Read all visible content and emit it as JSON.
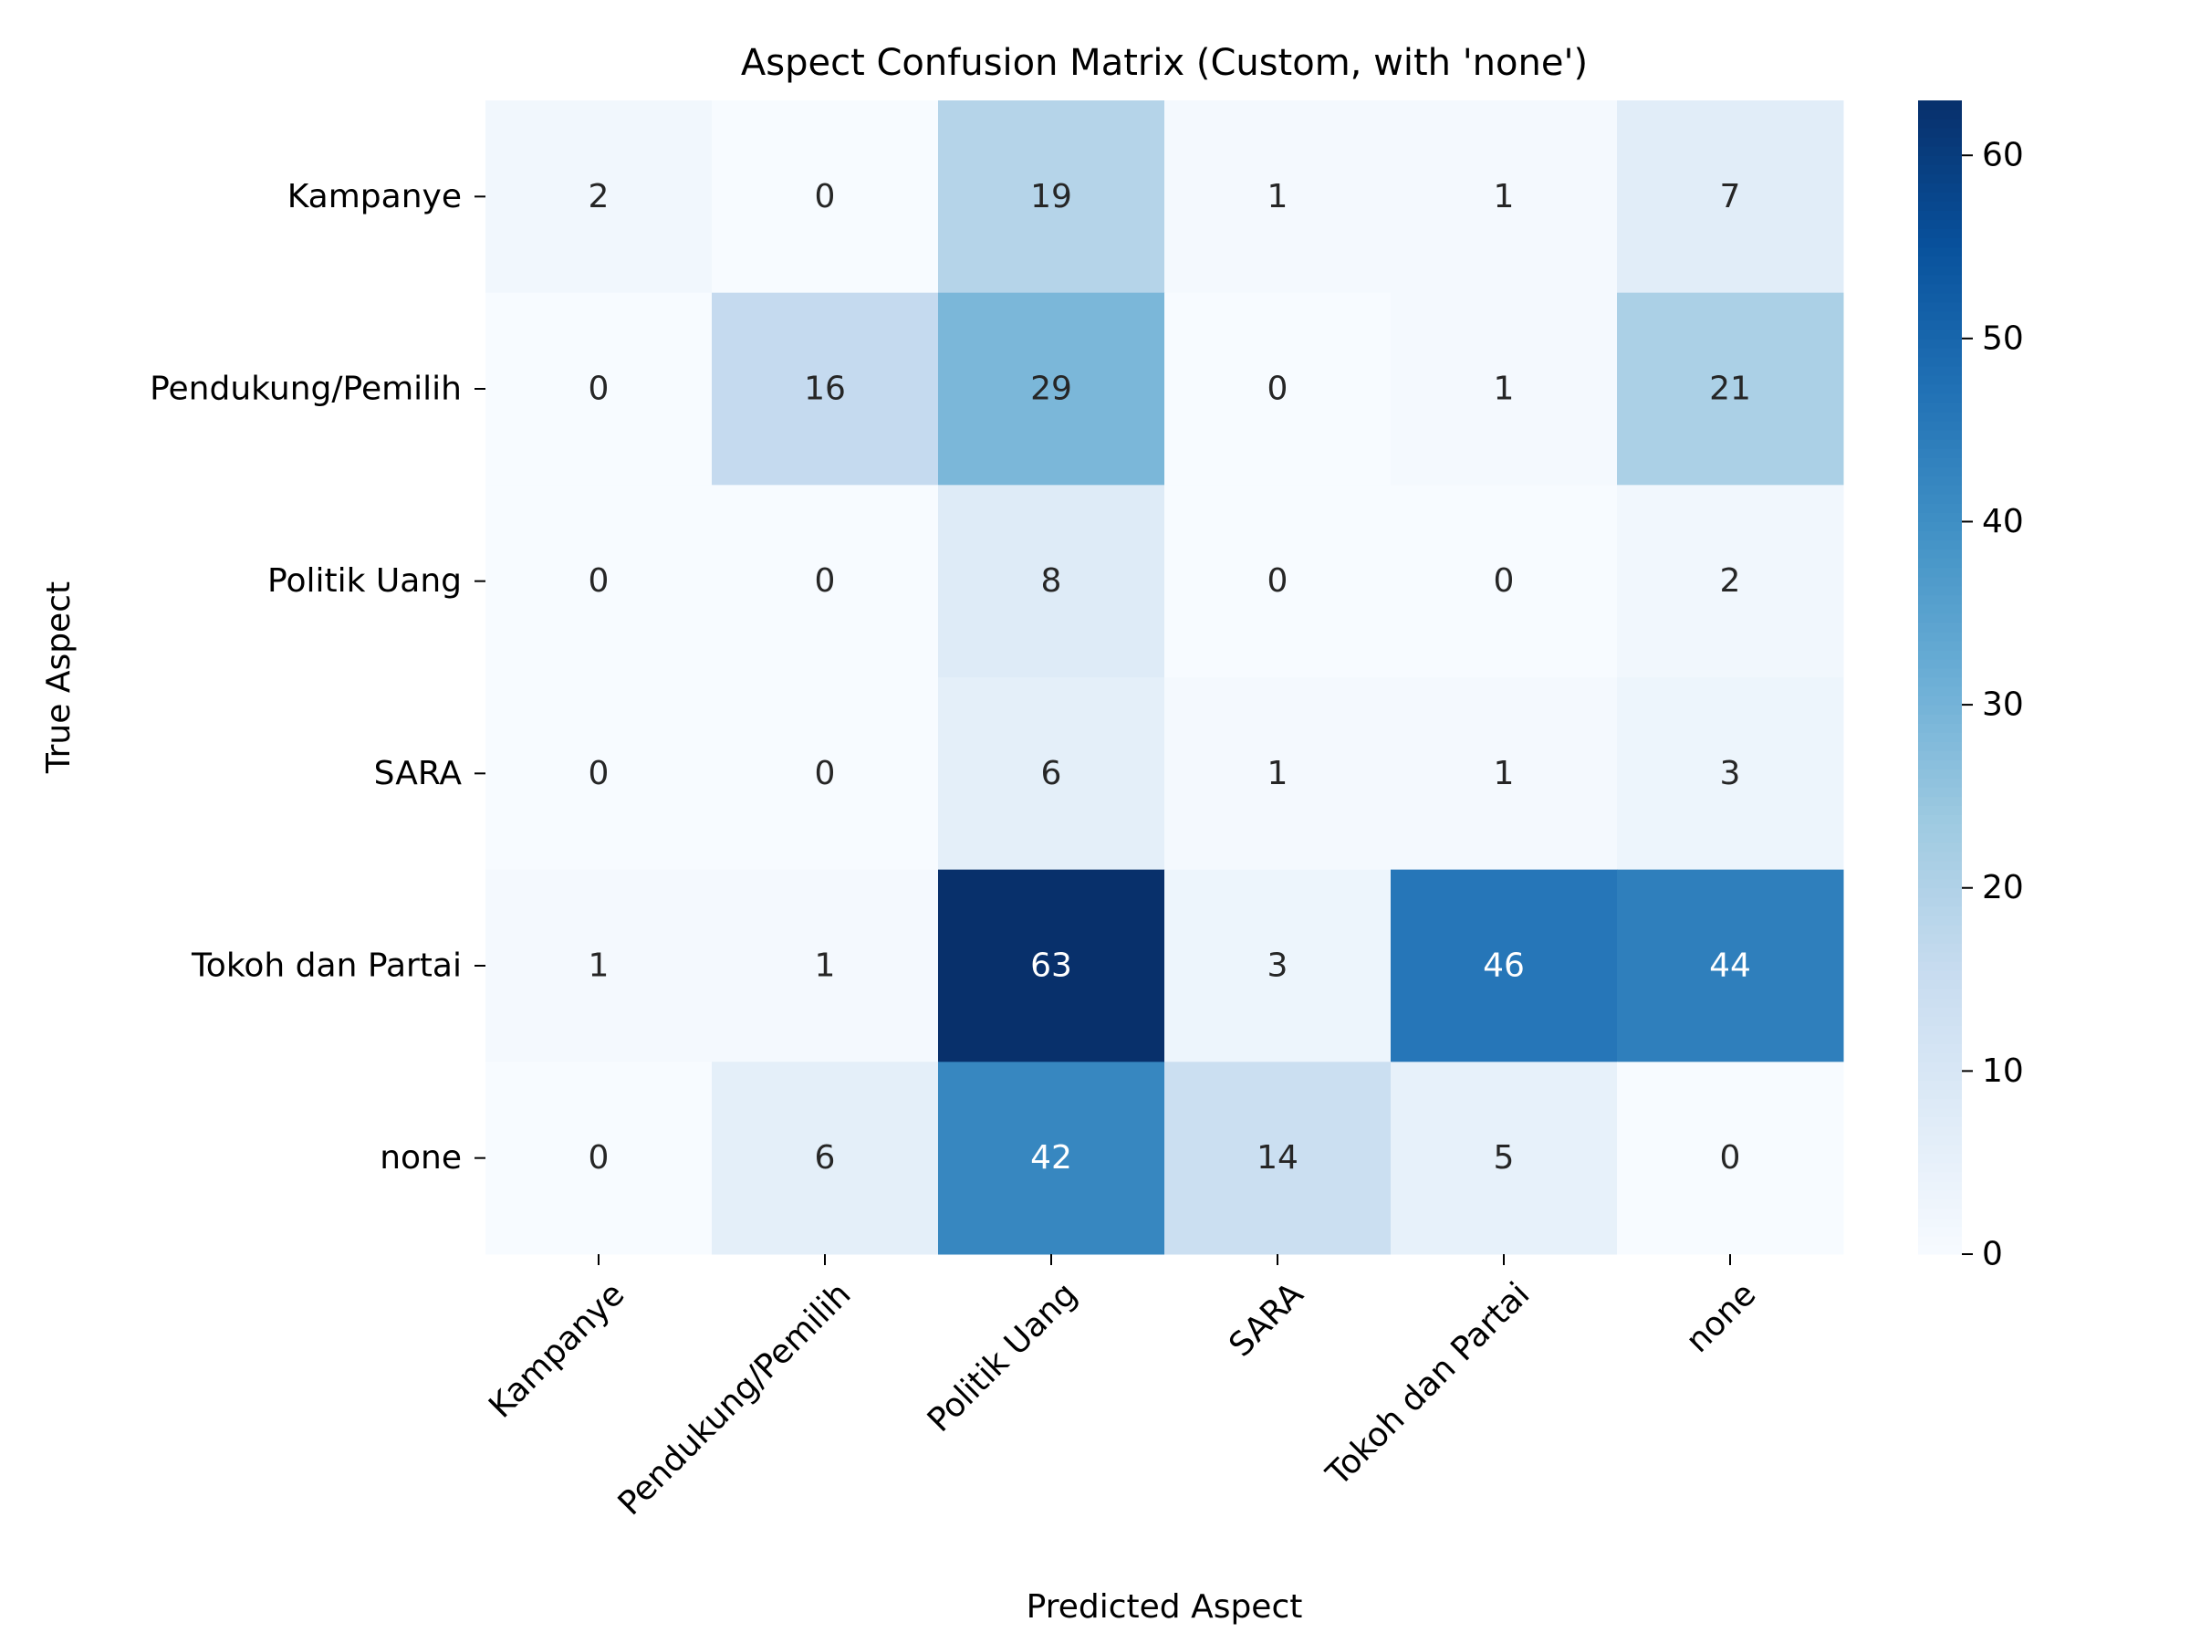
{
  "chart_data": {
    "type": "heatmap",
    "title": "Aspect Confusion Matrix (Custom, with 'none')",
    "xlabel": "Predicted Aspect",
    "ylabel": "True Aspect",
    "x_categories": [
      "Kampanye",
      "Pendukung/Pemilih",
      "Politik Uang",
      "SARA",
      "Tokoh dan Partai",
      "none"
    ],
    "y_categories": [
      "Kampanye",
      "Pendukung/Pemilih",
      "Politik Uang",
      "SARA",
      "Tokoh dan Partai",
      "none"
    ],
    "values": [
      [
        2,
        0,
        19,
        1,
        1,
        7
      ],
      [
        0,
        16,
        29,
        0,
        1,
        21
      ],
      [
        0,
        0,
        8,
        0,
        0,
        2
      ],
      [
        0,
        0,
        6,
        1,
        1,
        3
      ],
      [
        1,
        1,
        63,
        3,
        46,
        44
      ],
      [
        0,
        6,
        42,
        14,
        5,
        0
      ]
    ],
    "colorscale": "Blues",
    "colorbar": {
      "range": [
        0,
        63
      ],
      "ticks": [
        0,
        10,
        20,
        30,
        40,
        50,
        60
      ]
    },
    "grid": false
  }
}
